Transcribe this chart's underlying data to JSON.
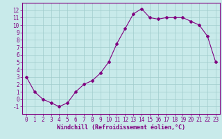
{
  "x": [
    0,
    1,
    2,
    3,
    4,
    5,
    6,
    7,
    8,
    9,
    10,
    11,
    12,
    13,
    14,
    15,
    16,
    17,
    18,
    19,
    20,
    21,
    22,
    23
  ],
  "y": [
    3,
    1,
    0,
    -0.5,
    -1,
    -0.5,
    1,
    2,
    2.5,
    3.5,
    5,
    7.5,
    9.5,
    11.5,
    12.2,
    11,
    10.8,
    11,
    11,
    11,
    10.5,
    10,
    8.5,
    5
  ],
  "line_color": "#800080",
  "marker": "D",
  "marker_size": 2,
  "bg_color": "#c8eaea",
  "grid_color": "#a0cccc",
  "axis_color": "#800080",
  "xlabel": "Windchill (Refroidissement éolien,°C)",
  "xlabel_fontsize": 6,
  "tick_fontsize": 5.5,
  "ylim": [
    -2,
    13
  ],
  "xlim": [
    -0.5,
    23.5
  ],
  "yticks": [
    -1,
    0,
    1,
    2,
    3,
    4,
    5,
    6,
    7,
    8,
    9,
    10,
    11,
    12
  ],
  "xticks": [
    0,
    1,
    2,
    3,
    4,
    5,
    6,
    7,
    8,
    9,
    10,
    11,
    12,
    13,
    14,
    15,
    16,
    17,
    18,
    19,
    20,
    21,
    22,
    23
  ]
}
